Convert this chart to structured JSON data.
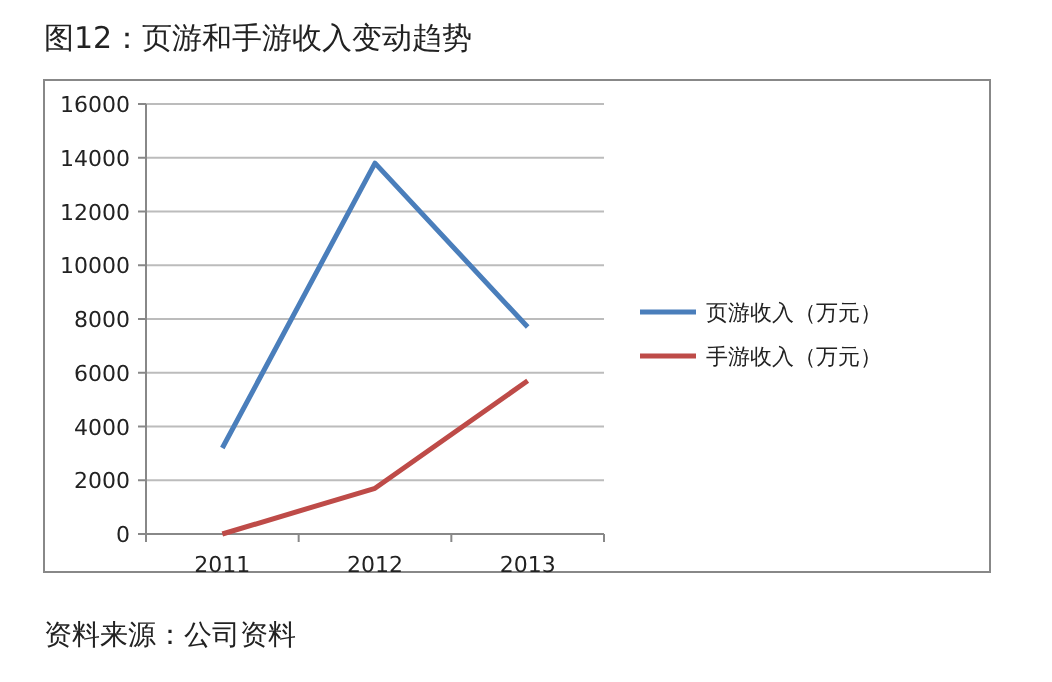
{
  "chart_data": {
    "type": "line",
    "title": "图12：页游和手游收入变动趋势",
    "categories": [
      "2011",
      "2012",
      "2013"
    ],
    "series": [
      {
        "name": "页游收入（万元）",
        "color": "#4a7ebb",
        "values": [
          3200,
          13800,
          7700
        ]
      },
      {
        "name": "手游收入（万元）",
        "color": "#be4b48",
        "values": [
          0,
          1700,
          5700
        ]
      }
    ],
    "ylim": [
      0,
      16000
    ],
    "yticks": [
      0,
      2000,
      4000,
      6000,
      8000,
      10000,
      12000,
      14000,
      16000
    ],
    "grid": "y",
    "legend": "right",
    "marker": "none",
    "line_style": "solid",
    "annotations": [
      "资料来源：公司资料"
    ]
  }
}
